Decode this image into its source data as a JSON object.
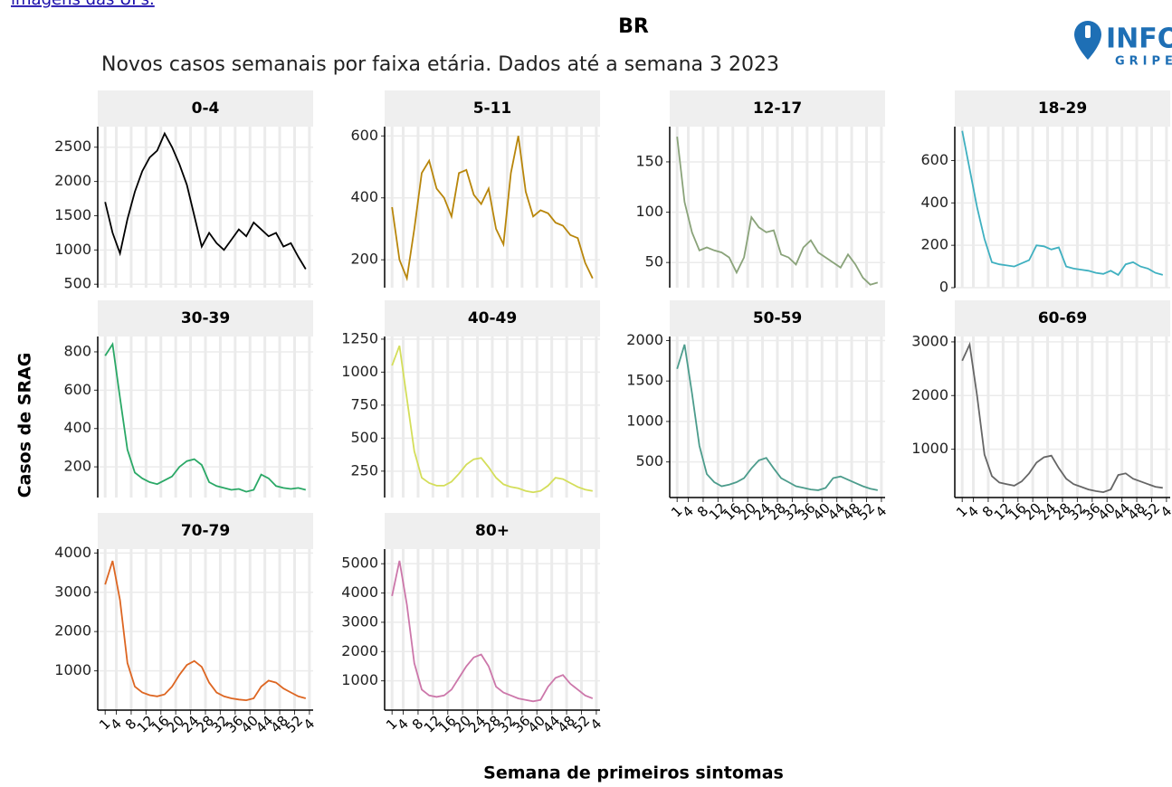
{
  "header": {
    "link_text": "imagens das UFs.",
    "logo_top": "INFO",
    "logo_bottom": "GRIPE"
  },
  "chart_data": {
    "type": "line",
    "title": "BR",
    "subtitle": "Novos casos semanais por faixa etária. Dados até a semana 3 2023",
    "ylabel": "Casos de SRAG",
    "xlabel": "Semana de primeiros sintomas",
    "grid": true,
    "x": [
      1,
      3,
      5,
      7,
      9,
      11,
      13,
      15,
      17,
      19,
      21,
      23,
      25,
      27,
      29,
      31,
      33,
      35,
      37,
      39,
      41,
      43,
      45,
      47,
      49,
      51,
      53,
      55
    ],
    "xlim": [
      -1,
      57
    ],
    "xticks": [
      1,
      4,
      8,
      12,
      16,
      20,
      24,
      28,
      32,
      36,
      40,
      44,
      48,
      52,
      {
        "value": 56,
        "label": "4"
      }
    ],
    "panels": [
      {
        "name": "0-4",
        "color": "#000000",
        "ylim": [
          450,
          2800
        ],
        "yticks": [
          500,
          1000,
          1500,
          2000,
          2500
        ],
        "values": [
          1700,
          1250,
          950,
          1450,
          1850,
          2150,
          2350,
          2450,
          2700,
          2500,
          2250,
          1950,
          1500,
          1050,
          1250,
          1100,
          1000,
          1150,
          1300,
          1200,
          1400,
          1300,
          1200,
          1250,
          1050,
          1100,
          900,
          720
        ]
      },
      {
        "name": "5-11",
        "color": "#b8860b",
        "ylim": [
          110,
          630
        ],
        "yticks": [
          200,
          400,
          600
        ],
        "values": [
          370,
          200,
          140,
          300,
          480,
          520,
          430,
          400,
          340,
          480,
          490,
          410,
          380,
          430,
          300,
          250,
          480,
          600,
          420,
          340,
          360,
          350,
          320,
          310,
          280,
          270,
          190,
          140
        ]
      },
      {
        "name": "12-17",
        "color": "#8aa37a",
        "ylim": [
          25,
          185
        ],
        "yticks": [
          50,
          100,
          150
        ],
        "values": [
          175,
          110,
          80,
          62,
          65,
          62,
          60,
          55,
          40,
          55,
          95,
          85,
          80,
          82,
          58,
          55,
          48,
          65,
          72,
          60,
          55,
          50,
          45,
          58,
          48,
          35,
          28,
          30
        ]
      },
      {
        "name": "18-29",
        "color": "#3fb0c0",
        "ylim": [
          0,
          760
        ],
        "yticks": [
          0,
          200,
          400,
          600
        ],
        "values": [
          740,
          560,
          380,
          230,
          120,
          110,
          105,
          100,
          115,
          130,
          200,
          195,
          180,
          190,
          100,
          90,
          85,
          80,
          70,
          65,
          80,
          60,
          110,
          120,
          100,
          90,
          70,
          60
        ]
      },
      {
        "name": "30-39",
        "color": "#2aa866",
        "ylim": [
          40,
          880
        ],
        "yticks": [
          200,
          400,
          600,
          800
        ],
        "values": [
          780,
          840,
          560,
          290,
          170,
          140,
          120,
          110,
          130,
          150,
          200,
          230,
          240,
          210,
          120,
          100,
          90,
          80,
          85,
          70,
          80,
          160,
          140,
          100,
          90,
          85,
          90,
          80
        ]
      },
      {
        "name": "40-49",
        "color": "#d4de5a",
        "ylim": [
          50,
          1270
        ],
        "yticks": [
          250,
          500,
          750,
          1000,
          1250
        ],
        "values": [
          1050,
          1200,
          800,
          400,
          200,
          160,
          140,
          140,
          170,
          230,
          300,
          340,
          350,
          280,
          200,
          150,
          130,
          120,
          100,
          90,
          100,
          140,
          200,
          190,
          160,
          130,
          110,
          100
        ]
      },
      {
        "name": "50-59",
        "color": "#4c9c8c",
        "ylim": [
          60,
          2050
        ],
        "yticks": [
          500,
          1000,
          1500,
          2000
        ],
        "values": [
          1650,
          1950,
          1350,
          700,
          350,
          250,
          200,
          220,
          250,
          300,
          420,
          520,
          550,
          420,
          300,
          250,
          200,
          180,
          160,
          150,
          180,
          300,
          320,
          280,
          240,
          200,
          170,
          150
        ]
      },
      {
        "name": "60-69",
        "color": "#666666",
        "ylim": [
          100,
          3100
        ],
        "yticks": [
          1000,
          2000,
          3000
        ],
        "values": [
          2650,
          2950,
          2000,
          900,
          500,
          380,
          350,
          320,
          400,
          550,
          750,
          850,
          880,
          650,
          450,
          350,
          300,
          250,
          220,
          200,
          250,
          520,
          550,
          450,
          400,
          350,
          300,
          280
        ]
      },
      {
        "name": "70-79",
        "color": "#dd6622",
        "ylim": [
          0,
          4100
        ],
        "yticks": [
          1000,
          2000,
          3000,
          4000
        ],
        "values": [
          3200,
          3800,
          2800,
          1200,
          600,
          450,
          380,
          350,
          400,
          600,
          900,
          1150,
          1250,
          1100,
          700,
          450,
          350,
          300,
          270,
          250,
          300,
          600,
          750,
          700,
          550,
          450,
          350,
          300
        ]
      },
      {
        "name": "80+",
        "color": "#cc77aa",
        "ylim": [
          0,
          5500
        ],
        "yticks": [
          1000,
          2000,
          3000,
          4000,
          5000
        ],
        "values": [
          3900,
          5100,
          3600,
          1600,
          700,
          500,
          450,
          500,
          700,
          1100,
          1500,
          1800,
          1900,
          1500,
          800,
          600,
          500,
          400,
          350,
          300,
          350,
          800,
          1100,
          1200,
          900,
          700,
          500,
          400
        ]
      }
    ]
  }
}
